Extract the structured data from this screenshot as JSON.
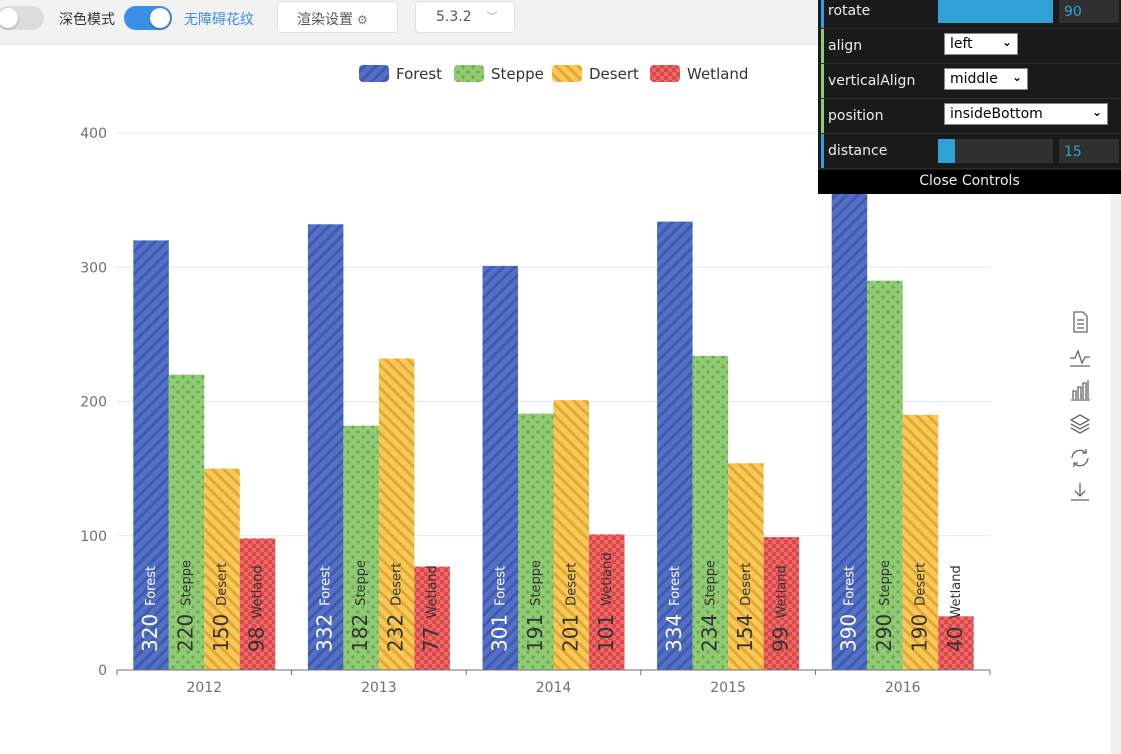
{
  "topbar": {
    "dark_mode_label": "深色模式",
    "decal_label": "无障碍花纹",
    "render_button": "渲染设置",
    "version": "5.3.2"
  },
  "controls": {
    "rotate": {
      "label": "rotate",
      "value": "90",
      "fraction": 1.0
    },
    "align": {
      "label": "align",
      "value": "left"
    },
    "verticalAlign": {
      "label": "verticalAlign",
      "value": "middle"
    },
    "position": {
      "label": "position",
      "value": "insideBottom"
    },
    "distance": {
      "label": "distance",
      "value": "15",
      "fraction": 0.15
    },
    "close_label": "Close Controls",
    "accent_color": "#2fa1d6"
  },
  "toolbox": [
    "data-view-icon",
    "line-chart-icon",
    "bar-chart-icon",
    "stack-icon",
    "restore-icon",
    "save-image-icon"
  ],
  "chart_data": {
    "type": "bar",
    "categories": [
      "2012",
      "2013",
      "2014",
      "2015",
      "2016"
    ],
    "series": [
      {
        "name": "Forest",
        "values": [
          320,
          332,
          301,
          334,
          390
        ],
        "color": "#5470c6",
        "decal": "diagonal-stripes"
      },
      {
        "name": "Steppe",
        "values": [
          220,
          182,
          191,
          234,
          290
        ],
        "color": "#91cc75",
        "decal": "dots"
      },
      {
        "name": "Desert",
        "values": [
          150,
          232,
          201,
          154,
          190
        ],
        "color": "#fac858",
        "decal": "diagonal-stripes"
      },
      {
        "name": "Wetland",
        "values": [
          98,
          77,
          101,
          99,
          40
        ],
        "color": "#ee6666",
        "decal": "checker"
      }
    ],
    "y_ticks": [
      0,
      100,
      200,
      300,
      400
    ],
    "ylim": [
      0,
      400
    ],
    "legend_position": "top-center",
    "grid": true,
    "label_rotate": 90,
    "label_position": "insideBottom"
  }
}
